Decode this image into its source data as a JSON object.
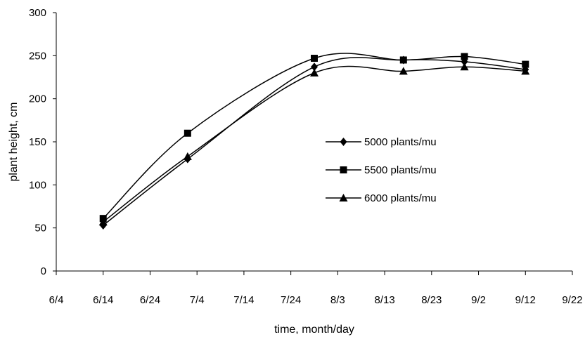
{
  "chart_data": {
    "type": "line",
    "title": "",
    "xlabel": "time, month/day",
    "ylabel": "plant height, cm",
    "x_ticks": [
      "6/4",
      "6/14",
      "6/24",
      "7/4",
      "7/14",
      "7/24",
      "8/3",
      "8/13",
      "8/23",
      "9/2",
      "9/12",
      "9/22"
    ],
    "y_ticks": [
      "0",
      "50",
      "100",
      "150",
      "200",
      "250",
      "300"
    ],
    "ylim": [
      0,
      300
    ],
    "grid": false,
    "legend_position": "right-center",
    "x": [
      "6/14",
      "7/2",
      "7/29",
      "8/17",
      "8/30",
      "9/12"
    ],
    "series": [
      {
        "name": "5000 plants/mu",
        "marker": "diamond",
        "values": [
          53,
          130,
          237,
          245,
          243,
          234
        ]
      },
      {
        "name": "5500 plants/mu",
        "marker": "square",
        "values": [
          61,
          160,
          247,
          245,
          249,
          240
        ]
      },
      {
        "name": "6000 plants/mu",
        "marker": "triangle",
        "values": [
          57,
          133,
          230,
          232,
          237,
          232
        ]
      }
    ]
  }
}
